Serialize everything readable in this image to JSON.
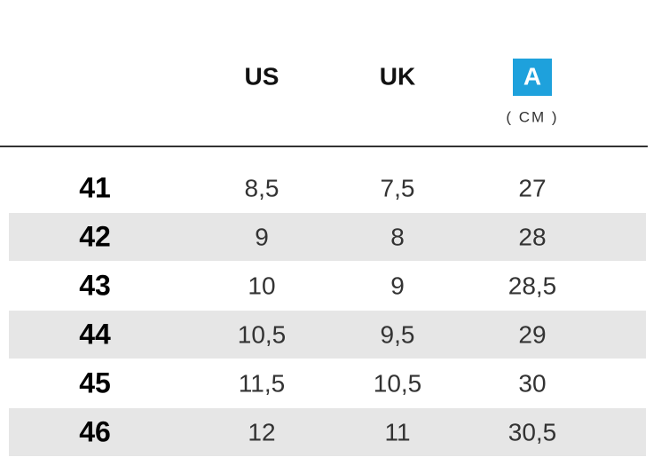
{
  "table": {
    "columns": [
      "US",
      "UK"
    ],
    "length_column": {
      "badge": "A",
      "unit": "( CM )"
    },
    "rows": [
      [
        "41",
        "8,5",
        "7,5",
        "27"
      ],
      [
        "42",
        "9",
        "8",
        "28"
      ],
      [
        "43",
        "10",
        "9",
        "28,5"
      ],
      [
        "44",
        "10,5",
        "9,5",
        "29"
      ],
      [
        "45",
        "11,5",
        "10,5",
        "30"
      ],
      [
        "46",
        "12",
        "11",
        "30,5"
      ]
    ]
  }
}
